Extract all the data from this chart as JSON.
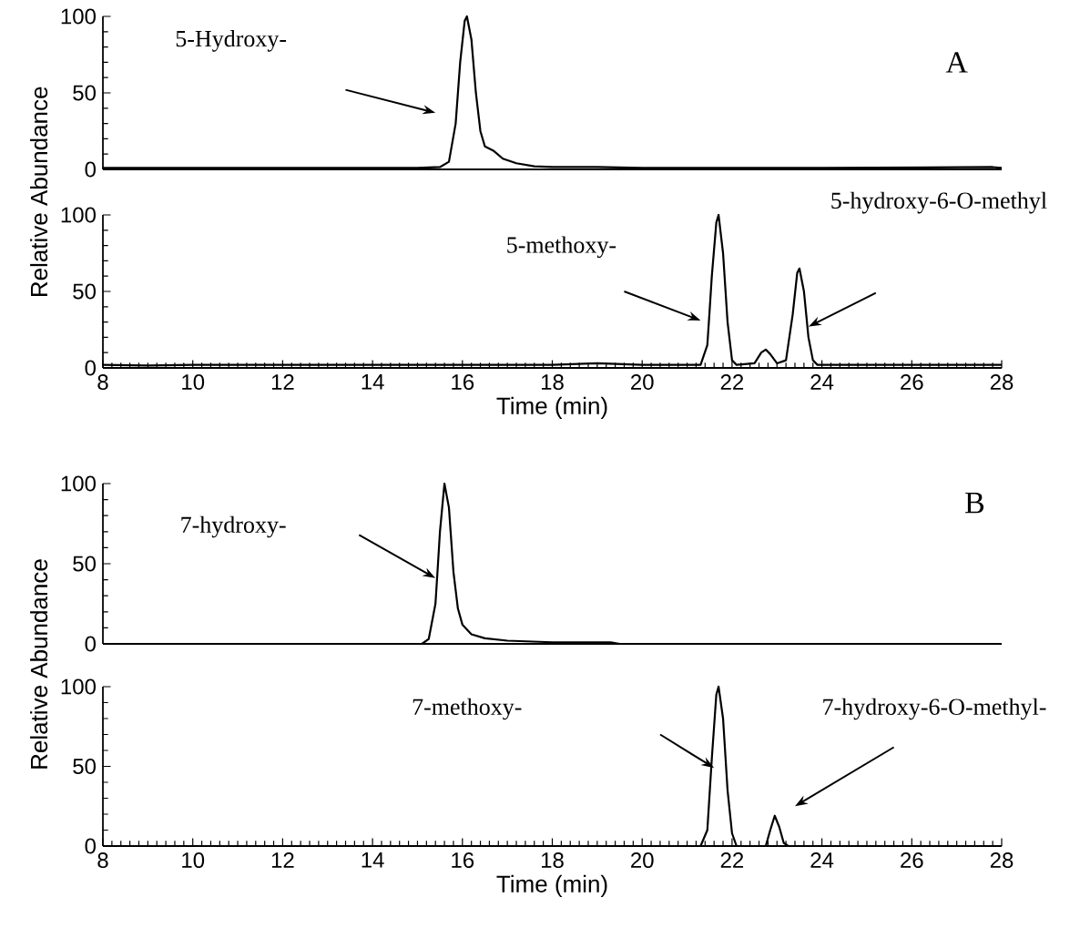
{
  "chart_data": [
    {
      "type": "line",
      "xlim": [
        8,
        28
      ],
      "ylim": [
        0,
        100
      ],
      "yticks": [
        0,
        50,
        100
      ],
      "tick_labels": "y",
      "marker": "none",
      "series": [
        {
          "color": "#000000",
          "x": [
            8,
            10,
            12,
            14,
            15.0,
            15.5,
            15.7,
            15.85,
            15.95,
            16.05,
            16.1,
            16.2,
            16.3,
            16.4,
            16.5,
            16.7,
            16.9,
            17.2,
            17.6,
            18,
            19,
            20,
            24,
            27.8,
            28
          ],
          "values": [
            1,
            1,
            1,
            1,
            1,
            1.5,
            5,
            30,
            70,
            97,
            100,
            85,
            50,
            25,
            15,
            12,
            7,
            4,
            2,
            1.5,
            1.5,
            1,
            1,
            1.5,
            1
          ]
        }
      ],
      "annotations": [
        "A",
        "5-Hydroxy-"
      ]
    },
    {
      "type": "line",
      "xlim": [
        8,
        28
      ],
      "ylim": [
        0,
        100
      ],
      "yticks": [
        0,
        50,
        100
      ],
      "xticks": [
        8,
        10,
        12,
        14,
        16,
        18,
        20,
        22,
        24,
        26,
        28
      ],
      "xlabel": "Time (min)",
      "ylabel": "Relative Abundance",
      "marker": "none",
      "series": [
        {
          "color": "#000000",
          "x": [
            8,
            9,
            10,
            12,
            14,
            16,
            18,
            19,
            20,
            21.3,
            21.45,
            21.5,
            21.55,
            21.65,
            21.7,
            21.8,
            21.9,
            22.0,
            22.1,
            22.5,
            22.65,
            22.75,
            22.85,
            23.0,
            23.2,
            23.35,
            23.45,
            23.5,
            23.6,
            23.65,
            23.7,
            23.8,
            23.9,
            26,
            28
          ],
          "values": [
            2,
            1.5,
            2,
            2,
            2,
            2,
            2,
            3,
            2,
            2,
            15,
            37,
            60,
            95,
            100,
            75,
            30,
            5,
            2,
            3,
            10,
            12,
            9,
            3,
            5,
            35,
            62,
            65,
            50,
            35,
            20,
            5,
            2,
            2,
            2
          ]
        }
      ],
      "annotations": [
        "5-methoxy-",
        "5-hydroxy-6-O-methyl"
      ]
    },
    {
      "type": "line",
      "xlim": [
        8,
        28
      ],
      "ylim": [
        0,
        100
      ],
      "yticks": [
        0,
        50,
        100
      ],
      "tick_labels": "y",
      "marker": "none",
      "series": [
        {
          "color": "#000000",
          "x": [
            8,
            14,
            15.1,
            15.25,
            15.4,
            15.45,
            15.5,
            15.6,
            15.7,
            15.8,
            15.9,
            16.0,
            16.2,
            16.5,
            17,
            18,
            19.3,
            19.5,
            28
          ],
          "values": [
            0,
            0,
            0,
            3,
            25,
            47,
            70,
            100,
            85,
            45,
            22,
            12,
            6,
            3.5,
            2,
            1,
            1,
            0,
            0
          ]
        }
      ],
      "annotations": [
        "B",
        "7-hydroxy-"
      ]
    },
    {
      "type": "line",
      "xlim": [
        8,
        28
      ],
      "ylim": [
        0,
        100
      ],
      "yticks": [
        0,
        50,
        100
      ],
      "xticks": [
        8,
        10,
        12,
        14,
        16,
        18,
        20,
        22,
        24,
        26,
        28
      ],
      "xlabel": "Time (min)",
      "ylabel": "Relative Abundance",
      "marker": "none",
      "series": [
        {
          "color": "#000000",
          "x": [
            8,
            21.3,
            21.45,
            21.55,
            21.65,
            21.7,
            21.8,
            21.9,
            22.0,
            22.1,
            22.75,
            22.85,
            22.95,
            23.05,
            23.15,
            23.25,
            28
          ],
          "values": [
            0,
            0,
            10,
            55,
            95,
            100,
            80,
            35,
            8,
            0,
            0,
            10,
            19,
            12,
            2,
            0,
            0
          ]
        }
      ],
      "annotations": [
        "7-methoxy-",
        "7-hydroxy-6-O-methyl-"
      ]
    }
  ]
}
